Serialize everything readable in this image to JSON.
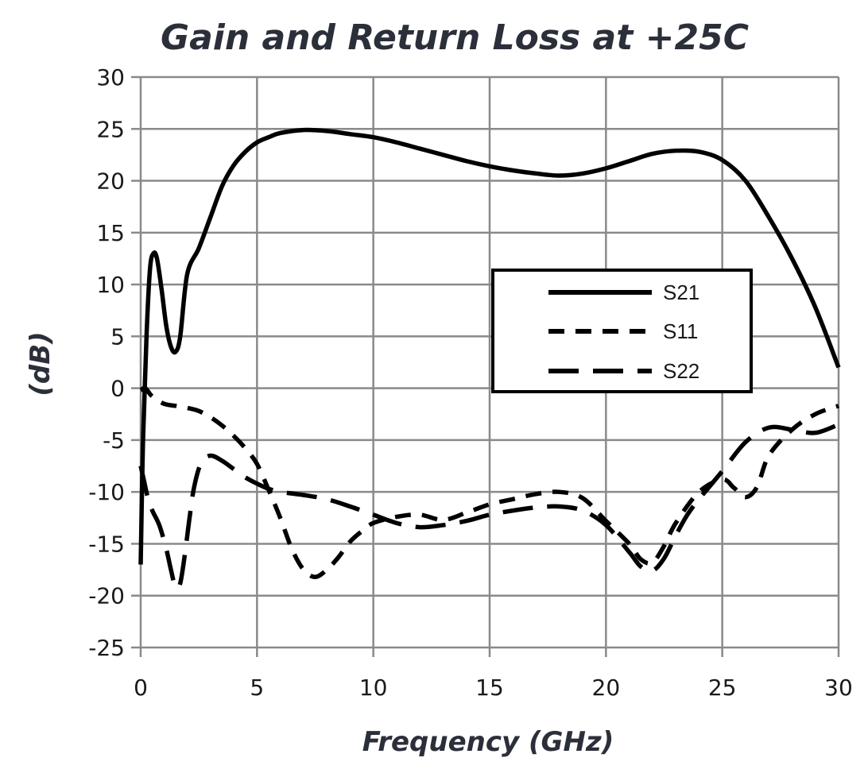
{
  "chart_data": {
    "type": "line",
    "title": "Gain and Return Loss at +25C",
    "xlabel": "Frequency (GHz)",
    "ylabel": "(dB)",
    "xlim": [
      0,
      30
    ],
    "ylim": [
      -25,
      30
    ],
    "x_ticks": [
      "0",
      "5",
      "10",
      "15",
      "20",
      "25",
      "30"
    ],
    "y_ticks": [
      "30",
      "25",
      "20",
      "15",
      "10",
      "5",
      "0",
      "-5",
      "-10",
      "-15",
      "-20",
      "-25"
    ],
    "grid": true,
    "legend": {
      "position": "center-right",
      "entries": [
        "S21",
        "S11",
        "S22"
      ]
    },
    "series": [
      {
        "name": "S21",
        "style": "solid",
        "x": [
          0.0,
          0.1,
          0.25,
          0.4,
          0.55,
          0.7,
          0.9,
          1.1,
          1.3,
          1.5,
          1.7,
          2.0,
          2.5,
          3.0,
          3.5,
          4.0,
          4.5,
          5.0,
          5.5,
          6.0,
          7.0,
          8.0,
          9.0,
          10.0,
          11.0,
          12.0,
          13.0,
          14.0,
          15.0,
          16.0,
          17.0,
          18.0,
          19.0,
          20.0,
          21.0,
          22.0,
          23.0,
          24.0,
          25.0,
          26.0,
          27.0,
          28.0,
          29.0,
          30.0
        ],
        "y": [
          -17,
          -5,
          5,
          11.5,
          13,
          12.5,
          9.5,
          6,
          4,
          3.5,
          5,
          11,
          13.5,
          16.5,
          19.5,
          21.5,
          22.8,
          23.7,
          24.2,
          24.6,
          24.9,
          24.8,
          24.5,
          24.2,
          23.7,
          23.1,
          22.5,
          21.9,
          21.4,
          21.0,
          20.7,
          20.5,
          20.7,
          21.2,
          21.9,
          22.6,
          22.9,
          22.8,
          22.0,
          20.0,
          16.5,
          12.5,
          7.8,
          2.0
        ]
      },
      {
        "name": "S11",
        "style": "short-dash",
        "x": [
          0.0,
          0.2,
          0.5,
          1.0,
          1.5,
          2.0,
          2.5,
          3.0,
          3.5,
          4.0,
          4.5,
          5.0,
          5.5,
          6.0,
          6.5,
          7.0,
          7.5,
          8.0,
          8.5,
          9.0,
          9.5,
          10.0,
          11.0,
          12.0,
          13.0,
          14.0,
          15.0,
          16.0,
          17.0,
          18.0,
          19.0,
          20.0,
          21.0,
          21.5,
          22.0,
          22.5,
          23.0,
          24.0,
          25.0,
          25.5,
          26.0,
          26.5,
          27.0,
          28.0,
          29.0,
          30.0
        ],
        "y": [
          -0.2,
          0.0,
          -0.8,
          -1.5,
          -1.7,
          -1.9,
          -2.2,
          -2.8,
          -3.6,
          -4.6,
          -5.8,
          -7.3,
          -9.8,
          -12.5,
          -15.5,
          -17.5,
          -18.2,
          -17.5,
          -16.3,
          -14.8,
          -13.8,
          -13.0,
          -12.4,
          -12.2,
          -12.7,
          -12.0,
          -11.2,
          -10.7,
          -10.2,
          -10.0,
          -10.6,
          -12.8,
          -15.0,
          -16.5,
          -16.8,
          -15.2,
          -13.0,
          -10.0,
          -8.8,
          -9.6,
          -10.5,
          -9.5,
          -6.5,
          -4.0,
          -2.5,
          -1.7
        ]
      },
      {
        "name": "S22",
        "style": "long-dash",
        "x": [
          0.0,
          0.15,
          0.3,
          0.5,
          0.8,
          1.1,
          1.3,
          1.5,
          1.7,
          1.9,
          2.1,
          2.3,
          2.6,
          3.0,
          3.5,
          4.0,
          4.5,
          5.0,
          5.5,
          6.0,
          7.0,
          8.0,
          9.0,
          10.0,
          11.0,
          12.0,
          13.0,
          14.0,
          15.0,
          16.0,
          17.0,
          18.0,
          19.0,
          20.0,
          21.0,
          21.5,
          22.0,
          22.5,
          23.0,
          23.5,
          24.0,
          25.0,
          26.0,
          27.0,
          28.0,
          29.0,
          30.0
        ],
        "y": [
          -7.5,
          -9,
          -10.5,
          -11.8,
          -13.2,
          -15.5,
          -17.5,
          -19.2,
          -18.8,
          -16,
          -12.5,
          -9.5,
          -7.2,
          -6.5,
          -7,
          -7.8,
          -8.6,
          -9.2,
          -9.7,
          -10.0,
          -10.3,
          -10.7,
          -11.4,
          -12.2,
          -13.0,
          -13.4,
          -13.2,
          -12.8,
          -12.2,
          -11.8,
          -11.5,
          -11.4,
          -11.8,
          -13.2,
          -15.8,
          -17.2,
          -17.6,
          -16.4,
          -14.2,
          -12.2,
          -10.7,
          -8.0,
          -5.2,
          -3.8,
          -4.0,
          -4.3,
          -3.5
        ]
      }
    ]
  }
}
